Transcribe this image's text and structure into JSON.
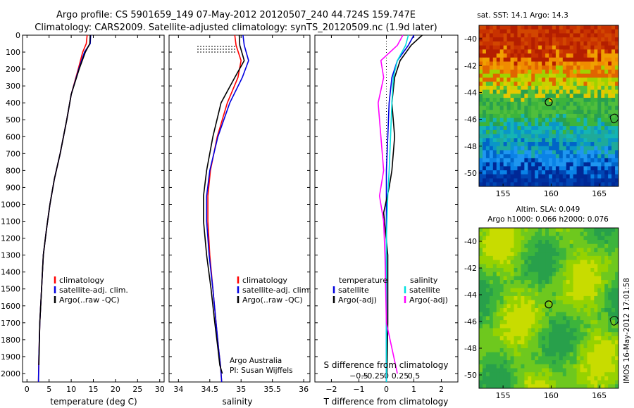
{
  "header": {
    "line1": "Argo profile: CS 5901659_149 07-May-2012 20120507_240 44.724S 159.747E",
    "line2": "Climatology: CARS2009. Satellite-adjusted climatology: synTS_20120509.nc (1.9d later)"
  },
  "colors": {
    "climatology": "#ff0000",
    "satellite": "#0000e0",
    "argo": "#000000",
    "satellite_salinity": "#00e0e0",
    "argo_salinity": "#ff00ff"
  },
  "chart_data": [
    {
      "type": "line",
      "name": "temperature-profile",
      "xlabel": "temperature (deg C)",
      "ylabel": "",
      "xlim": [
        -1,
        31
      ],
      "ylim": [
        2050,
        0
      ],
      "xticks": [
        0,
        5,
        10,
        15,
        20,
        25,
        30
      ],
      "yticks": [
        0,
        100,
        200,
        300,
        400,
        500,
        600,
        700,
        800,
        900,
        1000,
        1100,
        1200,
        1300,
        1400,
        1500,
        1600,
        1700,
        1800,
        1900,
        2000
      ],
      "legend": [
        "climatology",
        "satellite-adj. clim.",
        "Argo(..raw -QC)"
      ],
      "series": [
        {
          "name": "climatology",
          "color": "#ff0000",
          "x": [
            13.6,
            13.4,
            12.6,
            11.6,
            10.0,
            9.0,
            7.5,
            6.2,
            5.2,
            4.4,
            3.7,
            3.3,
            2.9,
            2.7,
            2.6
          ],
          "y": [
            0,
            50,
            100,
            200,
            350,
            500,
            700,
            850,
            1000,
            1150,
            1300,
            1500,
            1700,
            1900,
            2050
          ]
        },
        {
          "name": "satellite-adj. clim.",
          "color": "#0000e0",
          "x": [
            14.4,
            14.3,
            13.0,
            11.7,
            10.0,
            9.0,
            7.5,
            6.2,
            5.2,
            4.4,
            3.7,
            3.3,
            2.9,
            2.7,
            2.6
          ],
          "y": [
            0,
            50,
            100,
            200,
            350,
            500,
            700,
            850,
            1000,
            1150,
            1300,
            1500,
            1700,
            1900,
            2050
          ]
        },
        {
          "name": "Argo(..raw -QC)",
          "color": "#000000",
          "x": [
            14.3,
            14.2,
            13.2,
            11.8,
            10.0,
            9.0,
            7.5,
            6.2,
            5.2,
            4.4,
            3.7,
            3.3,
            2.9,
            2.7
          ],
          "y": [
            0,
            50,
            100,
            200,
            350,
            500,
            700,
            850,
            1000,
            1150,
            1300,
            1500,
            1700,
            1950
          ]
        }
      ]
    },
    {
      "type": "line",
      "name": "salinity-profile",
      "xlabel": "salinity",
      "ylabel": "",
      "xlim": [
        33.85,
        36.1
      ],
      "ylim": [
        2050,
        0
      ],
      "xticks": [
        34,
        34.5,
        35,
        35.5,
        36
      ],
      "legend": [
        "climatology",
        "satellite-adj. clim.",
        "Argo(..raw -QC)"
      ],
      "annotations": [
        "Argo Australia",
        "PI: Susan Wijffels"
      ],
      "series": [
        {
          "name": "climatology",
          "color": "#ff0000",
          "x": [
            34.9,
            34.92,
            35.0,
            34.95,
            34.78,
            34.62,
            34.51,
            34.47,
            34.47,
            34.5,
            34.55,
            34.6,
            34.64,
            34.67,
            34.69
          ],
          "y": [
            0,
            60,
            150,
            250,
            400,
            600,
            800,
            950,
            1100,
            1300,
            1500,
            1700,
            1850,
            1950,
            2050
          ]
        },
        {
          "name": "satellite-adj. clim.",
          "color": "#0000e0",
          "x": [
            35.03,
            35.05,
            35.12,
            35.02,
            34.82,
            34.63,
            34.5,
            34.45,
            34.45,
            34.49,
            34.55,
            34.6,
            34.64,
            34.67,
            34.69
          ],
          "y": [
            0,
            60,
            150,
            250,
            400,
            600,
            800,
            950,
            1100,
            1300,
            1500,
            1700,
            1850,
            1950,
            2050
          ]
        },
        {
          "name": "Argo(..raw -QC)",
          "color": "#000000",
          "x": [
            34.97,
            34.98,
            35.05,
            34.9,
            34.68,
            34.55,
            34.45,
            34.4,
            34.4,
            34.45,
            34.52,
            34.58,
            34.63,
            34.66,
            34.7
          ],
          "y": [
            0,
            60,
            150,
            250,
            400,
            600,
            800,
            950,
            1100,
            1300,
            1500,
            1700,
            1850,
            1950,
            2000
          ]
        }
      ]
    },
    {
      "type": "line",
      "name": "difference-profile",
      "xlabel": "T difference from climatology",
      "xlabel_top": "S difference from climatology",
      "xlim": [
        -2.6,
        2.6
      ],
      "ylim": [
        2050,
        0
      ],
      "xticks": [
        -2,
        -1,
        0,
        1,
        2
      ],
      "xtick_labels": [
        "−2",
        "−1",
        "0",
        "1",
        "2"
      ],
      "xticks_s": [
        "−0.5",
        "−0.25",
        "0",
        "0.25",
        "0.5"
      ],
      "legend_t": {
        "header": "temperature",
        "items": [
          "satellite",
          "Argo(-adj)"
        ]
      },
      "legend_s": {
        "header": "salinity",
        "items": [
          "satellite",
          "Argo(-adj)"
        ]
      },
      "series": [
        {
          "name": "T satellite",
          "color": "#0000e0",
          "x": [
            1.0,
            0.8,
            0.4,
            0.2,
            0.1,
            0.05,
            0.0,
            0.0,
            0.0,
            0.0,
            0.0
          ],
          "y": [
            0,
            60,
            150,
            250,
            400,
            600,
            800,
            1000,
            1300,
            1700,
            2050
          ]
        },
        {
          "name": "T Argo(-adj)",
          "color": "#000000",
          "x": [
            1.3,
            0.9,
            0.5,
            0.3,
            0.2,
            0.3,
            0.2,
            0.1,
            -0.1,
            0.05,
            0.05,
            0.02
          ],
          "y": [
            0,
            60,
            150,
            250,
            400,
            600,
            800,
            900,
            1050,
            1300,
            1700,
            2000
          ]
        },
        {
          "name": "S satellite",
          "color": "#00e0e0",
          "x": [
            0.8,
            0.7,
            0.4,
            0.25,
            0.2,
            0.15,
            0.1,
            0.05,
            0.0,
            0.0,
            0.0
          ],
          "y": [
            0,
            60,
            150,
            250,
            400,
            600,
            800,
            950,
            1200,
            1600,
            2050
          ]
        },
        {
          "name": "S Argo(-adj)",
          "color": "#ff00ff",
          "x": [
            0.6,
            0.4,
            -0.2,
            -0.1,
            -0.3,
            -0.2,
            -0.1,
            -0.25,
            -0.1,
            -0.05,
            0.0,
            0.4
          ],
          "y": [
            0,
            60,
            150,
            250,
            400,
            600,
            800,
            950,
            1100,
            1300,
            1700,
            2000
          ]
        }
      ]
    },
    {
      "type": "heatmap",
      "name": "sst-map",
      "title": "sat. SST: 14.1 Argo: 14.3",
      "xlim": [
        152.5,
        167
      ],
      "ylim": [
        -51,
        -39
      ],
      "xticks": [
        155,
        160,
        165
      ],
      "yticks": [
        -40,
        -42,
        -44,
        -46,
        -48,
        -50
      ],
      "marker": {
        "lon": 159.747,
        "lat": -44.724
      }
    },
    {
      "type": "heatmap",
      "name": "sla-map",
      "title": "Altim. SLA: 0.049",
      "subtitle": "Argo h1000: 0.066 h2000: 0.076",
      "xlim": [
        152.5,
        167
      ],
      "ylim": [
        -51,
        -39
      ],
      "xticks": [
        155,
        160,
        165
      ],
      "yticks": [
        -40,
        -42,
        -44,
        -46,
        -48,
        -50
      ],
      "marker": {
        "lon": 159.747,
        "lat": -44.724
      }
    }
  ],
  "side_stamp": "IMOS 16-May-2012 17:01:58"
}
